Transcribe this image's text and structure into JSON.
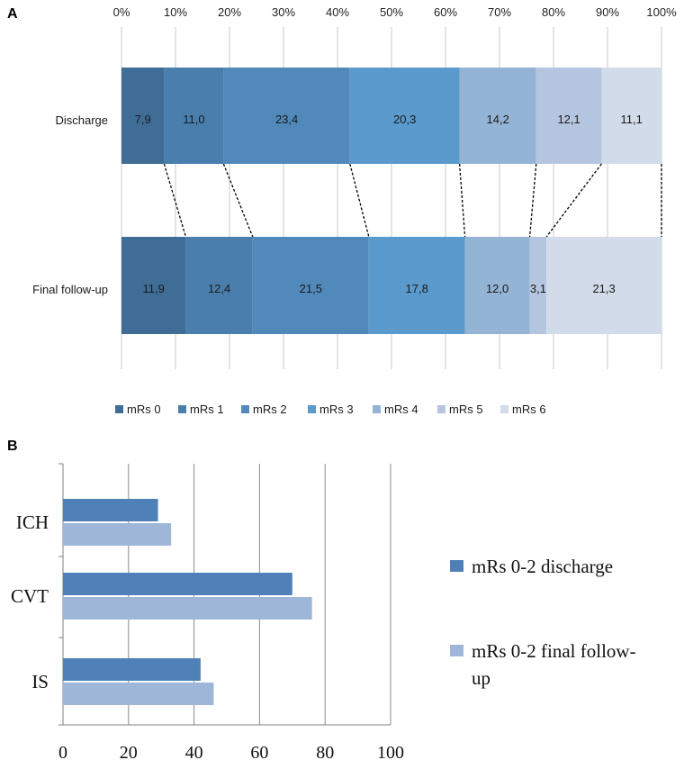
{
  "chart_data": [
    {
      "panel_label": "A",
      "type": "bar",
      "orientation": "horizontal-stacked-100",
      "categories": [
        "Discharge",
        "Final follow-up"
      ],
      "x_ticks": [
        "0%",
        "10%",
        "20%",
        "30%",
        "40%",
        "50%",
        "60%",
        "70%",
        "80%",
        "90%",
        "100%"
      ],
      "xlim": [
        0,
        100
      ],
      "series": [
        {
          "name": "mRs 0",
          "color": "#3f6d95",
          "values": [
            7.9,
            11.9
          ],
          "labels": [
            "7,9",
            "11,9"
          ]
        },
        {
          "name": "mRs 1",
          "color": "#4a7fad",
          "values": [
            11.0,
            12.4
          ],
          "labels": [
            "11,0",
            "12,4"
          ]
        },
        {
          "name": "mRs 2",
          "color": "#5189bb",
          "values": [
            23.4,
            21.5
          ],
          "labels": [
            "23,4",
            "21,5"
          ]
        },
        {
          "name": "mRs 3",
          "color": "#5a9acd",
          "values": [
            20.3,
            17.8
          ],
          "labels": [
            "20,3",
            "17,8"
          ]
        },
        {
          "name": "mRs 4",
          "color": "#94b4d6",
          "values": [
            14.2,
            12.0
          ],
          "labels": [
            "14,2",
            "12,0"
          ]
        },
        {
          "name": "mRs 5",
          "color": "#b4c6df",
          "values": [
            12.1,
            3.1
          ],
          "labels": [
            "12,1",
            "3,1"
          ]
        },
        {
          "name": "mRs 6",
          "color": "#d2dbe9",
          "values": [
            11.1,
            21.3
          ],
          "labels": [
            "11,1",
            "21,3"
          ]
        }
      ],
      "legend_position": "bottom",
      "grid": true
    },
    {
      "panel_label": "B",
      "type": "bar",
      "orientation": "horizontal-grouped",
      "categories": [
        "ICH",
        "CVT",
        "IS"
      ],
      "x_ticks": [
        "0",
        "20",
        "40",
        "60",
        "80",
        "100"
      ],
      "xlim": [
        0,
        100
      ],
      "series": [
        {
          "name": "mRs 0-2 discharge",
          "color": "#4f81b8",
          "values": [
            29,
            70,
            42
          ]
        },
        {
          "name": "mRs 0-2 final follow-up",
          "color": "#9eb6d8",
          "values": [
            33,
            76,
            46
          ]
        }
      ],
      "legend_labels": [
        [
          "mRs 0-2 discharge"
        ],
        [
          "mRs 0-2 final follow-",
          "up"
        ]
      ],
      "legend_position": "right",
      "grid": true
    }
  ]
}
